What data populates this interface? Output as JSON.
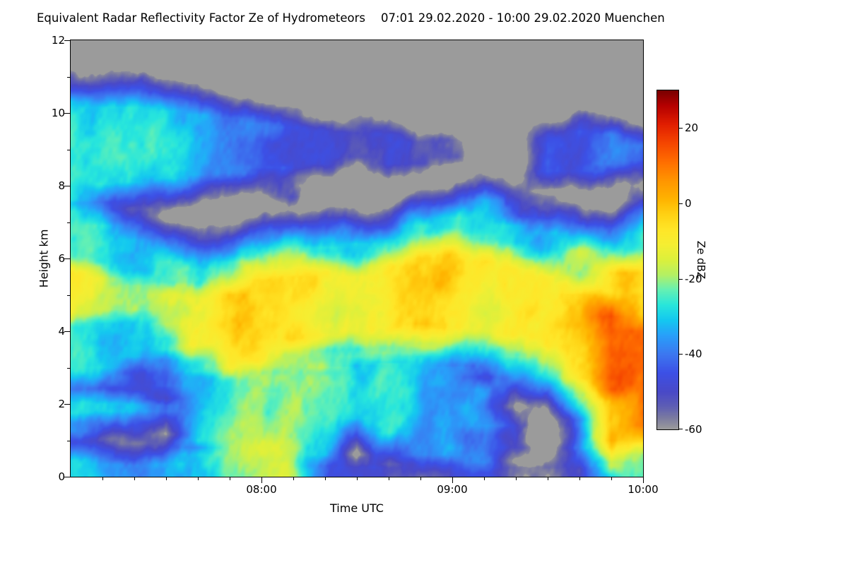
{
  "chart_data": {
    "type": "heatmap",
    "title": "Equivalent Radar Reflectivity Factor Ze of Hydrometeors",
    "subtitle": "07:01 29.02.2020 - 10:00 29.02.2020 Muenchen",
    "xlabel": "Time UTC",
    "ylabel": "Height km",
    "ylim": [
      0,
      12
    ],
    "y_ticks": [
      0,
      2,
      4,
      6,
      8,
      10,
      12
    ],
    "y_minor_step": 1,
    "x_start_minutes": 0,
    "x_end_minutes": 180,
    "x_minor_step_minutes": 10,
    "x_ticks": [
      {
        "minutes": 60,
        "label": "08:00"
      },
      {
        "minutes": 120,
        "label": "09:00"
      },
      {
        "minutes": 180,
        "label": "10:00"
      }
    ],
    "no_echo_color": "#9b9b9b",
    "colorbar": {
      "label": "Ze dBZ",
      "min": -60,
      "max": 30,
      "ticks": [
        20,
        0,
        -20,
        -40,
        -60
      ]
    },
    "colormap": [
      [
        -60,
        "#9b9b9b"
      ],
      [
        -57,
        "#7b7ba0"
      ],
      [
        -54,
        "#5f5fb4"
      ],
      [
        -50,
        "#4949c8"
      ],
      [
        -45,
        "#3c50e6"
      ],
      [
        -40,
        "#3c78f0"
      ],
      [
        -35,
        "#28a0fa"
      ],
      [
        -31,
        "#14c8f0"
      ],
      [
        -27,
        "#28e6dc"
      ],
      [
        -23,
        "#64f0b4"
      ],
      [
        -19,
        "#b4f064"
      ],
      [
        -15,
        "#dcf03c"
      ],
      [
        -11,
        "#f5ee32"
      ],
      [
        -7,
        "#ffe628"
      ],
      [
        -3,
        "#ffd214"
      ],
      [
        1,
        "#ffb400"
      ],
      [
        6,
        "#ff9600"
      ],
      [
        11,
        "#ff6e00"
      ],
      [
        16,
        "#f54600"
      ],
      [
        21,
        "#e11e00"
      ],
      [
        26,
        "#b40000"
      ],
      [
        30,
        "#780000"
      ]
    ],
    "columns": [
      {
        "t": 0,
        "segments": [
          [
            7.6,
            10.3,
            -30
          ],
          [
            2.9,
            4.5,
            -24
          ],
          [
            4.5,
            5.6,
            -12
          ],
          [
            5.6,
            7.3,
            -26
          ],
          [
            1.75,
            2.05,
            -28
          ],
          [
            1.25,
            1.5,
            -36
          ],
          [
            0,
            0.45,
            -30
          ]
        ]
      },
      {
        "t": 10,
        "segments": [
          [
            8.05,
            10.15,
            -31
          ],
          [
            7.5,
            8.0,
            -50
          ],
          [
            3.0,
            4.6,
            -25
          ],
          [
            4.6,
            5.45,
            -13
          ],
          [
            5.45,
            6.9,
            -27
          ],
          [
            1.8,
            2.0,
            -29
          ],
          [
            0,
            0.35,
            -32
          ]
        ]
      },
      {
        "t": 20,
        "segments": [
          [
            8.1,
            10.15,
            -32
          ],
          [
            3.3,
            4.6,
            -26
          ],
          [
            4.6,
            5.25,
            -15
          ],
          [
            5.25,
            6.5,
            -28
          ],
          [
            2.3,
            3.1,
            -40
          ],
          [
            1.8,
            2.0,
            -28
          ],
          [
            0,
            0.3,
            -36
          ]
        ]
      },
      {
        "t": 30,
        "segments": [
          [
            8.2,
            10.05,
            -33
          ],
          [
            3.5,
            4.3,
            -27
          ],
          [
            4.2,
            5.0,
            -15
          ],
          [
            5.0,
            5.9,
            -26
          ],
          [
            2.5,
            3.2,
            -36
          ],
          [
            1.8,
            1.95,
            -40
          ],
          [
            0,
            0.35,
            -34
          ]
        ]
      },
      {
        "t": 40,
        "segments": [
          [
            8.3,
            9.95,
            -35
          ],
          [
            2.9,
            3.6,
            -25
          ],
          [
            3.6,
            4.9,
            -11
          ],
          [
            4.9,
            5.7,
            -24
          ],
          [
            1.0,
            2.9,
            -30
          ],
          [
            0,
            0.6,
            -30
          ]
        ]
      },
      {
        "t": 50,
        "segments": [
          [
            8.35,
            9.85,
            -37
          ],
          [
            2.6,
            3.0,
            -20
          ],
          [
            3.0,
            5.0,
            -8
          ],
          [
            5.0,
            5.9,
            -22
          ],
          [
            0,
            2.6,
            -19
          ]
        ]
      },
      {
        "t": 60,
        "segments": [
          [
            8.5,
            9.7,
            -38
          ],
          [
            2.3,
            3.2,
            -16
          ],
          [
            3.2,
            5.4,
            -6
          ],
          [
            5.4,
            6.0,
            -24
          ],
          [
            0,
            2.3,
            -15
          ]
        ]
      },
      {
        "t": 70,
        "segments": [
          [
            8.5,
            9.6,
            -42
          ],
          [
            7.7,
            8.2,
            -50
          ],
          [
            2.6,
            3.8,
            -18
          ],
          [
            3.8,
            5.5,
            -4
          ],
          [
            5.5,
            6.2,
            -25
          ],
          [
            0,
            2.6,
            -18
          ]
        ]
      },
      {
        "t": 80,
        "segments": [
          [
            8.6,
            9.5,
            -44
          ],
          [
            3.0,
            3.9,
            -22
          ],
          [
            3.9,
            5.6,
            -9
          ],
          [
            5.6,
            6.3,
            -27
          ],
          [
            0.6,
            3.0,
            -27
          ],
          [
            0,
            0.5,
            -36
          ]
        ]
      },
      {
        "t": 90,
        "segments": [
          [
            8.8,
            9.45,
            -46
          ],
          [
            3.3,
            4.0,
            -24
          ],
          [
            4.0,
            5.5,
            -9
          ],
          [
            5.5,
            6.4,
            -26
          ],
          [
            1.6,
            3.0,
            -31
          ],
          [
            0,
            0.25,
            -50
          ]
        ]
      },
      {
        "t": 100,
        "segments": [
          [
            8.6,
            9.4,
            -42
          ],
          [
            3.4,
            4.1,
            -23
          ],
          [
            4.1,
            5.8,
            -7
          ],
          [
            5.8,
            6.5,
            -27
          ],
          [
            1.2,
            3.1,
            -29
          ],
          [
            0,
            0.25,
            -52
          ]
        ]
      },
      {
        "t": 110,
        "segments": [
          [
            8.6,
            9.2,
            -47
          ],
          [
            3.6,
            4.2,
            -22
          ],
          [
            4.2,
            6.0,
            -6
          ],
          [
            6.0,
            6.9,
            -28
          ],
          [
            0.6,
            3.5,
            -31
          ],
          [
            0,
            0.25,
            -53
          ]
        ]
      },
      {
        "t": 120,
        "segments": [
          [
            8.8,
            9.25,
            -50
          ],
          [
            3.6,
            4.1,
            -24
          ],
          [
            4.1,
            6.1,
            -7
          ],
          [
            6.1,
            7.1,
            -30
          ],
          [
            0.6,
            3.0,
            -36
          ],
          [
            0,
            0.25,
            -52
          ]
        ]
      },
      {
        "t": 130,
        "segments": [
          [
            6.6,
            7.6,
            -32
          ],
          [
            3.5,
            4.0,
            -25
          ],
          [
            4.0,
            5.9,
            -8
          ],
          [
            5.9,
            6.6,
            -28
          ],
          [
            1.4,
            2.4,
            -36
          ],
          [
            0.4,
            1.4,
            -44
          ],
          [
            0,
            0.25,
            -53
          ]
        ]
      },
      {
        "t": 140,
        "segments": [
          [
            3.3,
            3.9,
            -23
          ],
          [
            3.9,
            5.7,
            -7
          ],
          [
            5.7,
            6.9,
            -29
          ],
          [
            0.8,
            1.4,
            -48
          ],
          [
            0,
            0.25,
            -54
          ]
        ]
      },
      {
        "t": 150,
        "segments": [
          [
            8.4,
            9.3,
            -46
          ],
          [
            3.1,
            3.6,
            -22
          ],
          [
            3.6,
            5.5,
            -6
          ],
          [
            5.5,
            6.7,
            -28
          ],
          [
            0,
            0.25,
            -54
          ]
        ]
      },
      {
        "t": 160,
        "segments": [
          [
            8.4,
            9.5,
            -42
          ],
          [
            2.2,
            2.7,
            -16
          ],
          [
            2.7,
            5.0,
            -3
          ],
          [
            5.0,
            6.2,
            -20
          ],
          [
            0.8,
            2.2,
            -35
          ],
          [
            0,
            0.25,
            -52
          ]
        ]
      },
      {
        "t": 170,
        "segments": [
          [
            8.6,
            9.4,
            -38
          ],
          [
            2.4,
            4.4,
            12
          ],
          [
            1.0,
            2.4,
            2
          ],
          [
            4.4,
            5.6,
            -8
          ],
          [
            5.6,
            6.1,
            -28
          ],
          [
            0.3,
            1.0,
            -16
          ],
          [
            0,
            0.3,
            -36
          ]
        ]
      },
      {
        "t": 180,
        "segments": [
          [
            8.7,
            9.1,
            -44
          ],
          [
            6.6,
            7.0,
            -48
          ],
          [
            1.4,
            4.0,
            8
          ],
          [
            4.0,
            5.6,
            -6
          ],
          [
            5.6,
            6.7,
            -26
          ],
          [
            0,
            1.4,
            -16
          ]
        ]
      }
    ]
  }
}
